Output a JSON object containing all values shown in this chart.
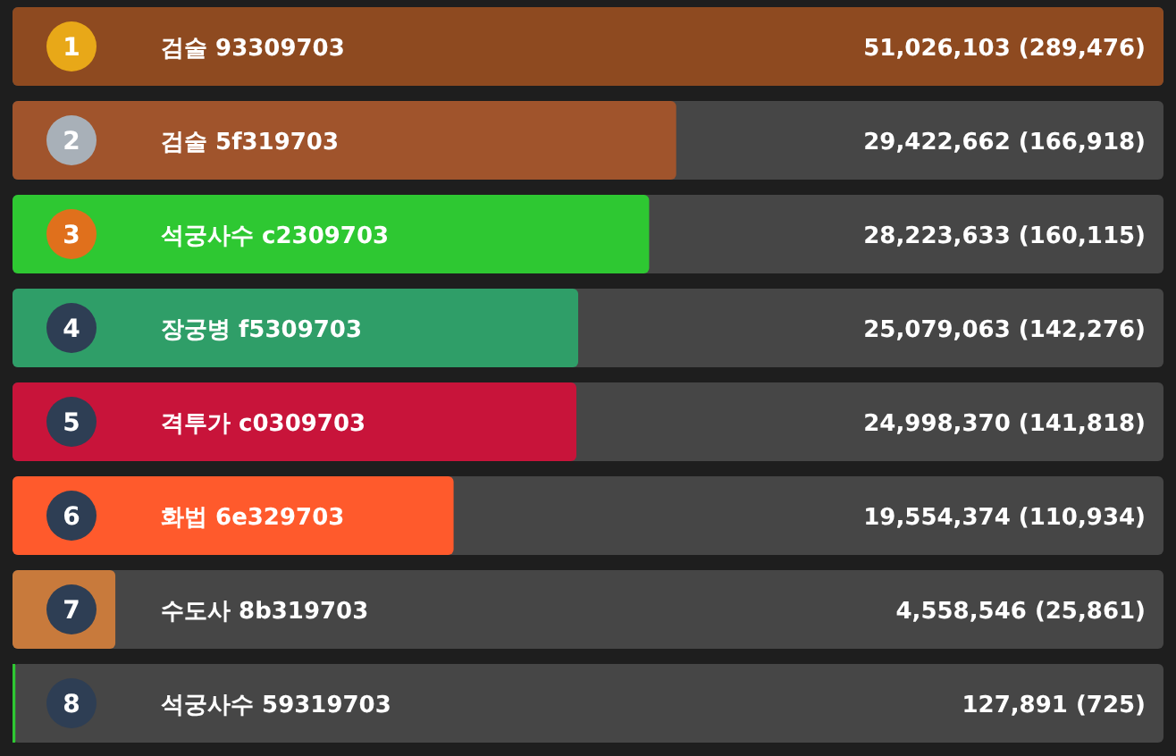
{
  "chart_data": {
    "type": "bar",
    "orientation": "horizontal",
    "categories": [
      "검술 93309703",
      "검술 5f319703",
      "석궁사수 c2309703",
      "장궁병 f5309703",
      "격투가 c0309703",
      "화법 6e329703",
      "수도사 8b319703",
      "석궁사수 59319703"
    ],
    "values": [
      51026103,
      29422662,
      28223633,
      25079063,
      24998370,
      19554374,
      4558546,
      127891
    ],
    "colors": [
      "#8e4a20",
      "#a0542c",
      "#2ec832",
      "#2f9e68",
      "#c8143a",
      "#ff5a2c",
      "#c87a3c",
      "#2ec832"
    ],
    "value_labels": [
      "51,026,103 (289,476)",
      "29,422,662 (166,918)",
      "28,223,633 (160,115)",
      "25,079,063 (142,276)",
      "24,998,370 (141,818)",
      "19,554,374 (110,934)",
      "4,558,546 (25,861)",
      "127,891 (725)"
    ],
    "annotations": [
      {
        "text": "1",
        "y": "검술 93309703"
      },
      {
        "text": "2",
        "y": "검술 5f319703"
      },
      {
        "text": "3",
        "y": "석궁사수 c2309703"
      },
      {
        "text": "4",
        "y": "장궁병 f5309703"
      },
      {
        "text": "5",
        "y": "격투가 c0309703"
      },
      {
        "text": "6",
        "y": "화법 6e329703"
      },
      {
        "text": "7",
        "y": "수도사 8b319703"
      },
      {
        "text": "8",
        "y": "석궁사수 59319703"
      }
    ]
  }
}
